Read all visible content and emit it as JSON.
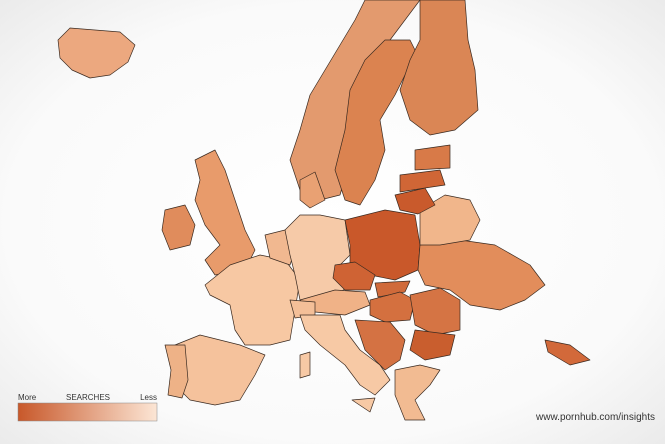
{
  "legend": {
    "high_label": "More",
    "title": "SEARCHES",
    "low_label": "Less"
  },
  "watermark": "www.pornhub.com/insights"
}
